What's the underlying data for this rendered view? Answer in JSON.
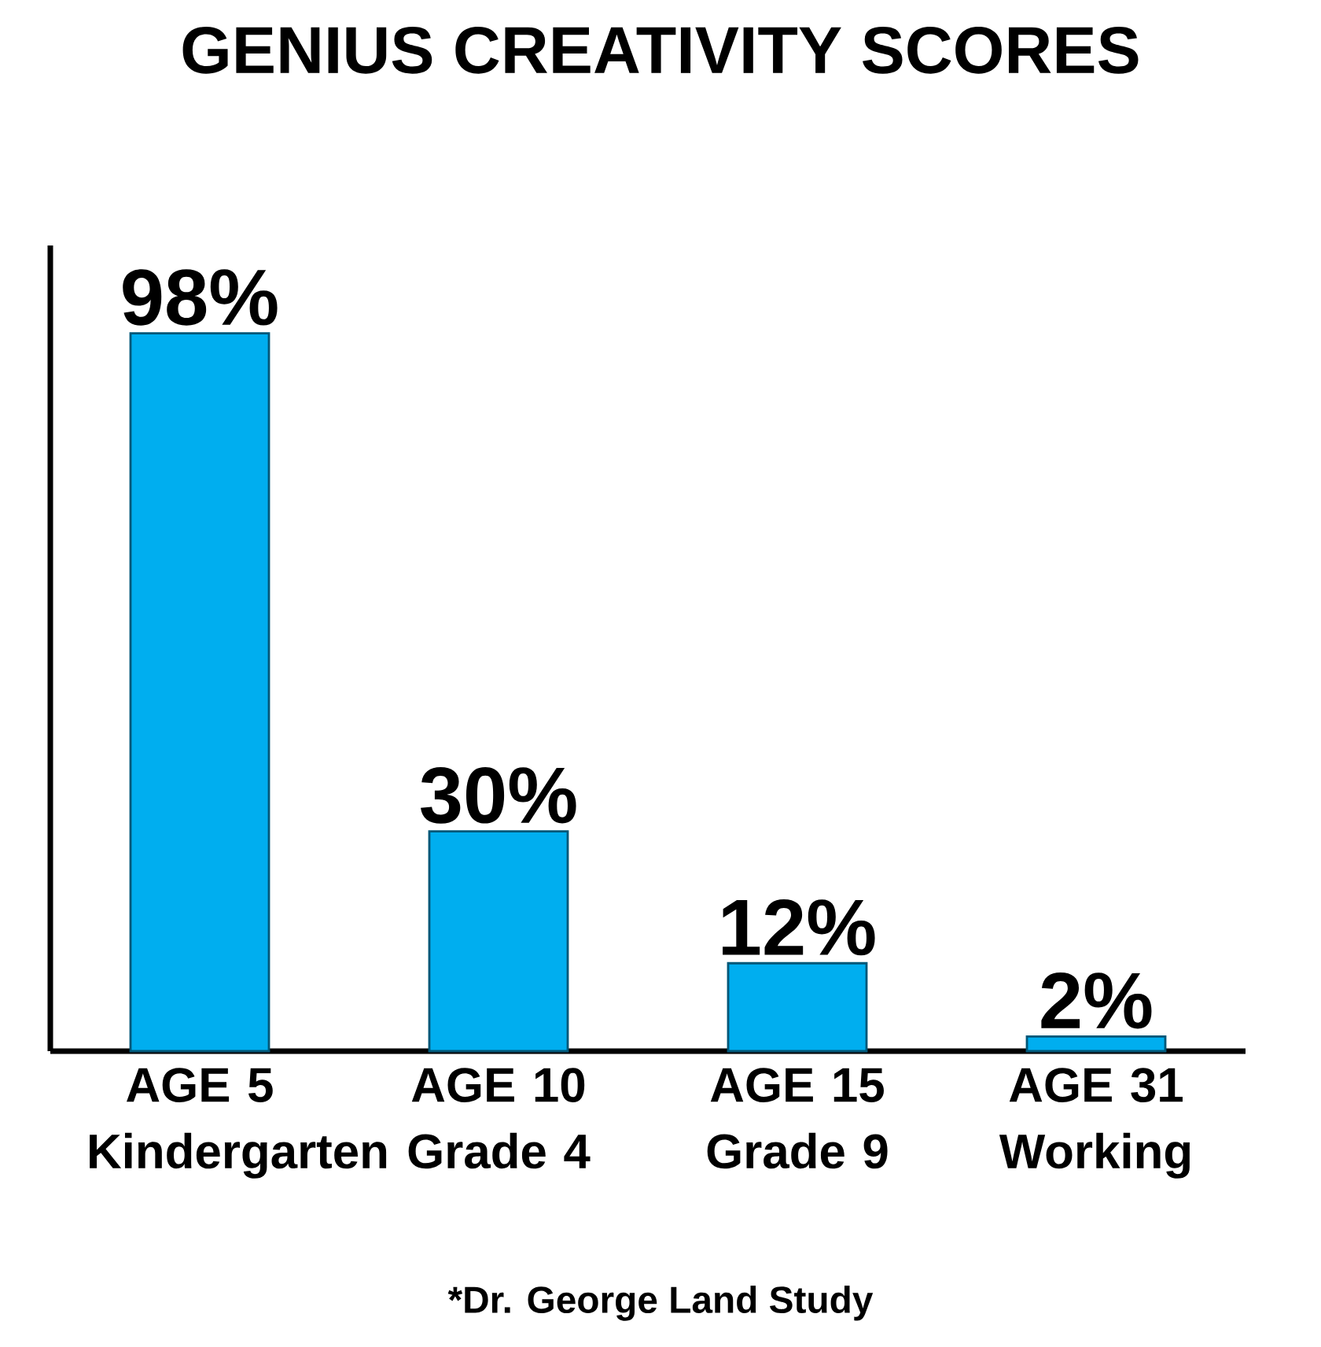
{
  "chart_data": {
    "type": "bar",
    "title": "GENIUS CREATIVITY SCORES",
    "categories": [
      "AGE 5 Kindergarten",
      "AGE 10 Grade 4",
      "AGE 15 Grade 9",
      "AGE 31 Working"
    ],
    "values": [
      98,
      30,
      12,
      2
    ],
    "color": "#00aeef",
    "value_labels": [
      "98%",
      "30%",
      "12%",
      "2%"
    ],
    "ylim": [
      0,
      110
    ],
    "tick_labels": "x",
    "annotations": [
      "*Dr. George Land Study"
    ]
  }
}
